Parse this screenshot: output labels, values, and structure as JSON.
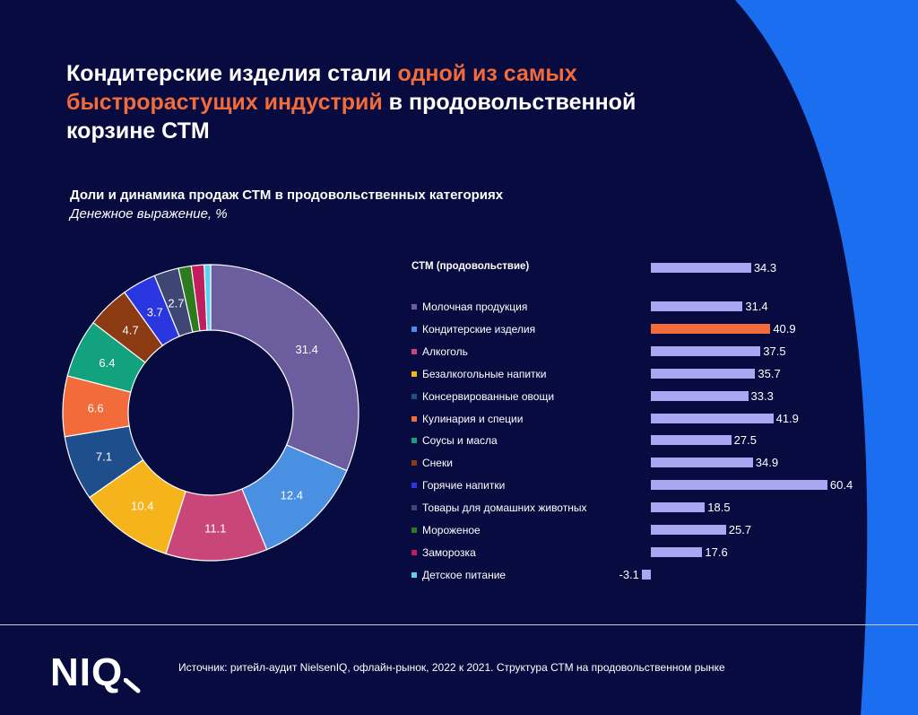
{
  "header": {
    "title_part1": "Кондитерские изделия стали ",
    "title_highlight": "одной из самых быстрорастущих индустрий",
    "title_part2": " в продовольственной корзине СТМ",
    "highlight_color": "#f26b3a"
  },
  "subtitle": "Доли и динамика продаж СТМ в продовольственных категориях",
  "subtitle_unit": "Денежное выражение, %",
  "chart_data": [
    {
      "type": "pie",
      "variant": "donut",
      "slices": [
        {
          "label": "Молочная продукция",
          "value": 31.4,
          "color": "#6b5d9e",
          "label_text": "31.4"
        },
        {
          "label": "Кондитерские изделия",
          "value": 12.4,
          "color": "#4a90e2",
          "label_text": "12.4"
        },
        {
          "label": "Алкоголь",
          "value": 11.1,
          "color": "#c9467a",
          "label_text": "11.1"
        },
        {
          "label": "Безалкогольные напитки",
          "value": 10.4,
          "color": "#f5b41c",
          "label_text": "10.4"
        },
        {
          "label": "Консервированные овощи",
          "value": 7.1,
          "color": "#1f4e8c",
          "label_text": "7.1"
        },
        {
          "label": "Кулинария и специи",
          "value": 6.6,
          "color": "#f26b3a",
          "label_text": "6.6"
        },
        {
          "label": "Соусы и масла",
          "value": 6.4,
          "color": "#12a27d",
          "label_text": "6.4"
        },
        {
          "label": "Снеки",
          "value": 4.7,
          "color": "#8b3a12",
          "label_text": "4.7"
        },
        {
          "label": "Горячие напитки",
          "value": 3.7,
          "color": "#2a36e0",
          "label_text": "3.7"
        },
        {
          "label": "Товары для домашних животных",
          "value": 2.7,
          "color": "#3e4674",
          "label_text": "2.7"
        },
        {
          "label": "Мороженое",
          "value": 1.4,
          "color": "#2e7a1e",
          "label_text": ""
        },
        {
          "label": "Заморозка",
          "value": 1.4,
          "color": "#c01e5c",
          "label_text": ""
        },
        {
          "label": "Детское питание",
          "value": 0.7,
          "color": "#5ad2f0",
          "label_text": ""
        }
      ]
    },
    {
      "type": "bar",
      "orientation": "horizontal",
      "header": "СТМ (продовольствие)",
      "header_value": 34.3,
      "categories": [
        "Молочная продукция",
        "Кондитерские изделия",
        "Алкоголь",
        "Безалкогольные напитки",
        "Консервированные овощи",
        "Кулинария и специи",
        "Соусы и масла",
        "Снеки",
        "Горячие напитки",
        "Товары для домашних животных",
        "Мороженое",
        "Заморозка",
        "Детское питание"
      ],
      "values": [
        31.4,
        40.9,
        37.5,
        35.7,
        33.3,
        41.9,
        27.5,
        34.9,
        60.4,
        18.5,
        25.7,
        17.6,
        -3.1
      ],
      "bar_color": "#a9a6f2",
      "highlight_color": "#f26b3a",
      "highlight_category": "Кондитерские изделия"
    }
  ],
  "footer": {
    "logo": "NIQ",
    "source": "Источник: ритейл-аудит NielsenIQ, офлайн-рынок, 2022 к 2021. Структура СТМ на продовольственном рынке"
  }
}
